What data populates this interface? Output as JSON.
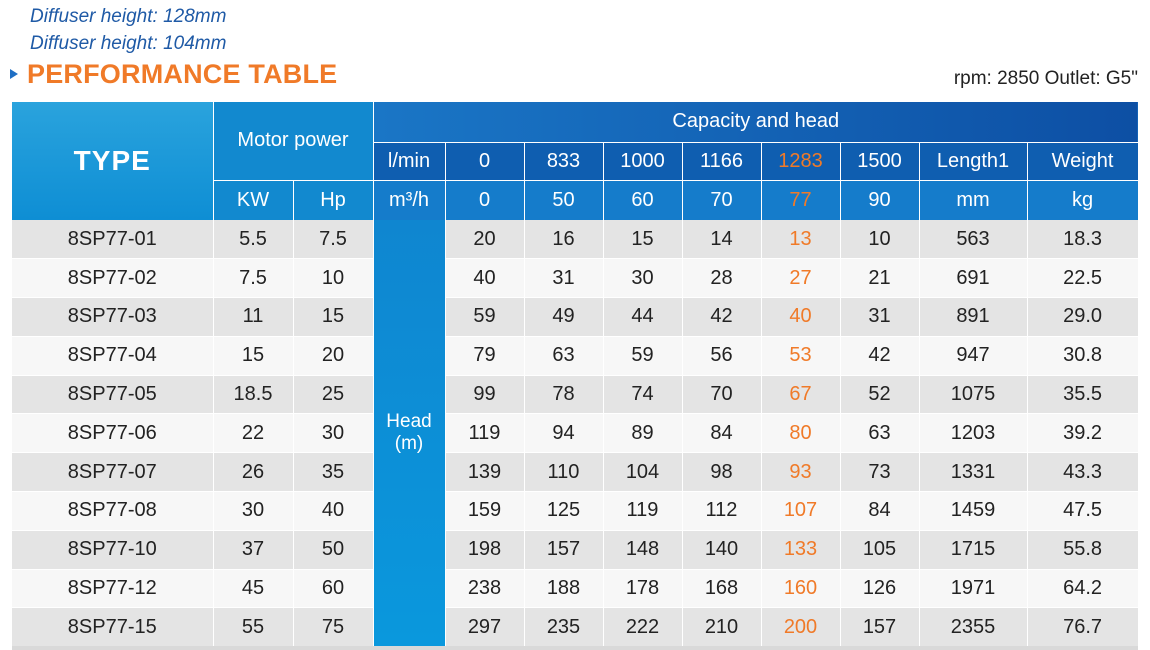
{
  "notes": [
    "Diffuser height: 128mm",
    "Diffuser height: 104mm"
  ],
  "title": "PERFORMANCE TABLE",
  "rpm_outlet": "rpm: 2850  Outlet: G5\"",
  "header": {
    "type": "TYPE",
    "motor_power": "Motor power",
    "capacity_head": "Capacity and head",
    "lmin_label": "l/min",
    "lmin_values": [
      "0",
      "833",
      "1000",
      "1166",
      "1283",
      "1500"
    ],
    "length_label": "Length1",
    "weight_label": "Weight",
    "kw": "KW",
    "hp": "Hp",
    "m3h_label": "m³/h",
    "m3h_values": [
      "0",
      "50",
      "60",
      "70",
      "77",
      "90"
    ],
    "length_unit": "mm",
    "weight_unit": "kg",
    "highlight_color": "#f07a28"
  },
  "head_label": "Head (m)",
  "rows": [
    {
      "type": "8SP77-01",
      "kw": "5.5",
      "hp": "7.5",
      "heads": [
        "20",
        "16",
        "15",
        "14",
        "13",
        "10"
      ],
      "length": "563",
      "weight": "18.3"
    },
    {
      "type": "8SP77-02",
      "kw": "7.5",
      "hp": "10",
      "heads": [
        "40",
        "31",
        "30",
        "28",
        "27",
        "21"
      ],
      "length": "691",
      "weight": "22.5"
    },
    {
      "type": "8SP77-03",
      "kw": "11",
      "hp": "15",
      "heads": [
        "59",
        "49",
        "44",
        "42",
        "40",
        "31"
      ],
      "length": "891",
      "weight": "29.0"
    },
    {
      "type": "8SP77-04",
      "kw": "15",
      "hp": "20",
      "heads": [
        "79",
        "63",
        "59",
        "56",
        "53",
        "42"
      ],
      "length": "947",
      "weight": "30.8"
    },
    {
      "type": "8SP77-05",
      "kw": "18.5",
      "hp": "25",
      "heads": [
        "99",
        "78",
        "74",
        "70",
        "67",
        "52"
      ],
      "length": "1075",
      "weight": "35.5"
    },
    {
      "type": "8SP77-06",
      "kw": "22",
      "hp": "30",
      "heads": [
        "119",
        "94",
        "89",
        "84",
        "80",
        "63"
      ],
      "length": "1203",
      "weight": "39.2"
    },
    {
      "type": "8SP77-07",
      "kw": "26",
      "hp": "35",
      "heads": [
        "139",
        "110",
        "104",
        "98",
        "93",
        "73"
      ],
      "length": "1331",
      "weight": "43.3"
    },
    {
      "type": "8SP77-08",
      "kw": "30",
      "hp": "40",
      "heads": [
        "159",
        "125",
        "119",
        "112",
        "107",
        "84"
      ],
      "length": "1459",
      "weight": "47.5"
    },
    {
      "type": "8SP77-10",
      "kw": "37",
      "hp": "50",
      "heads": [
        "198",
        "157",
        "148",
        "140",
        "133",
        "105"
      ],
      "length": "1715",
      "weight": "55.8"
    },
    {
      "type": "8SP77-12",
      "kw": "45",
      "hp": "60",
      "heads": [
        "238",
        "188",
        "178",
        "168",
        "160",
        "126"
      ],
      "length": "1971",
      "weight": "64.2"
    },
    {
      "type": "8SP77-15",
      "kw": "55",
      "hp": "75",
      "heads": [
        "297",
        "235",
        "222",
        "210",
        "200",
        "157"
      ],
      "length": "2355",
      "weight": "76.7"
    }
  ]
}
